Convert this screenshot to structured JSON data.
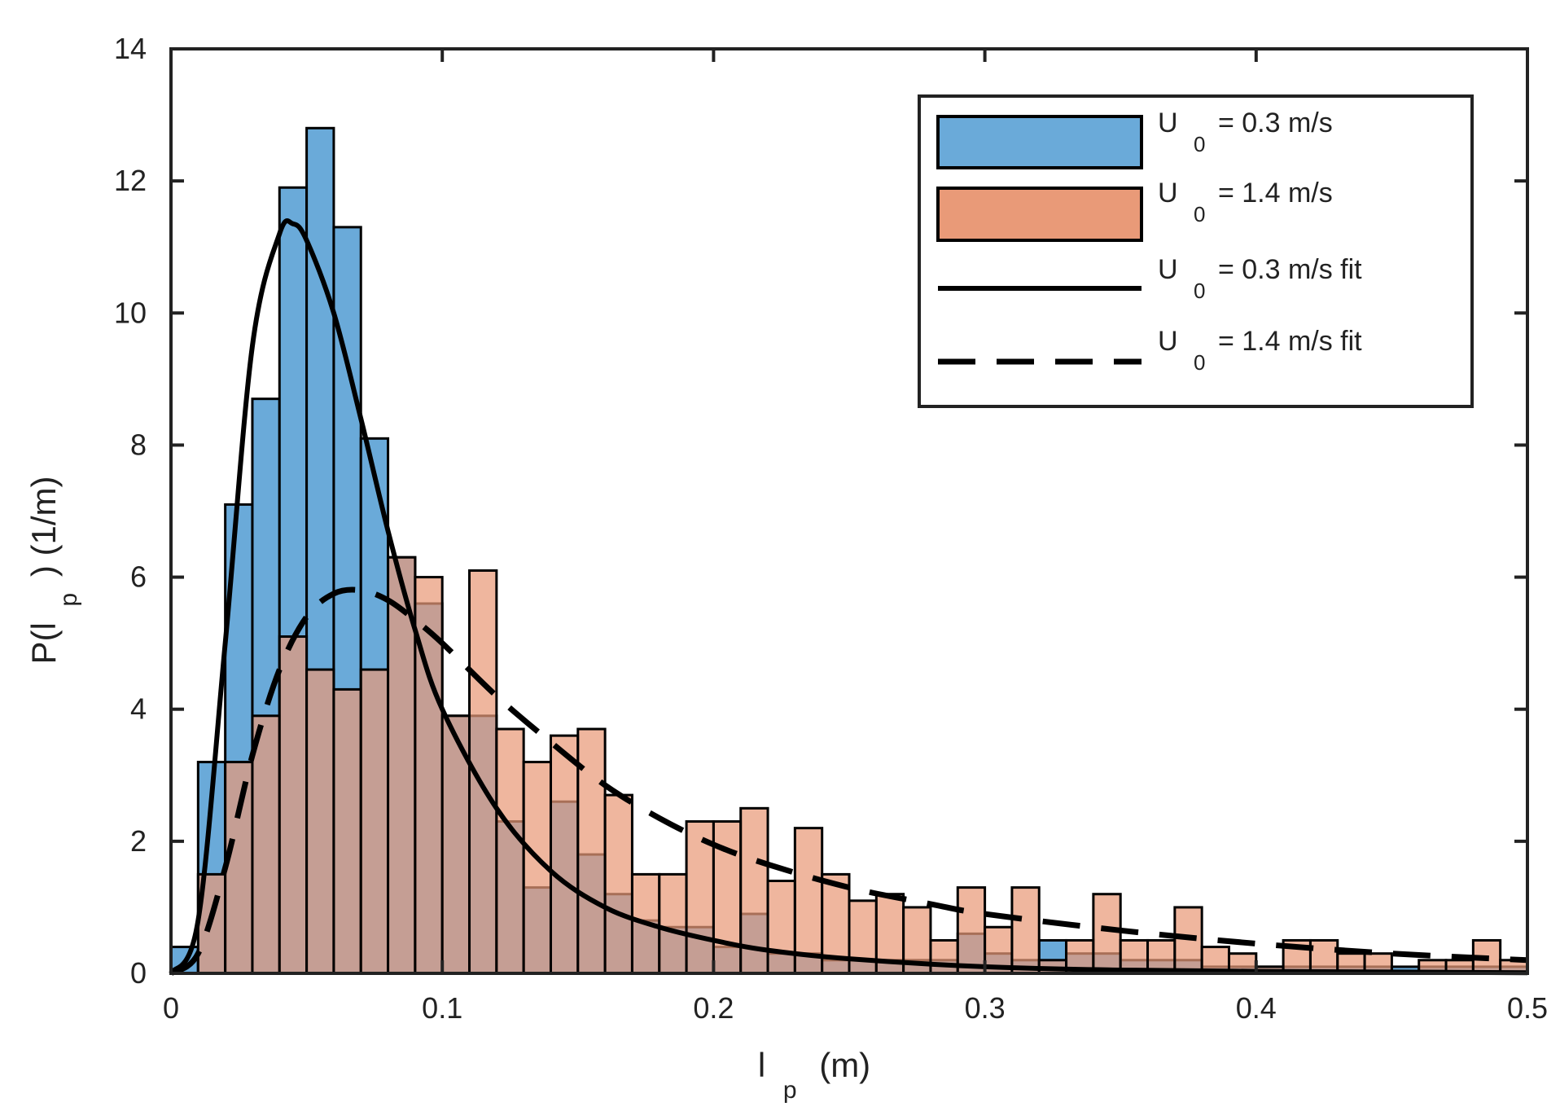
{
  "chart_data": {
    "type": "bar",
    "xlabel": {
      "main": "l",
      "sub": "p",
      "unit": "(m)"
    },
    "ylabel": {
      "prefix": "P(l",
      "sub": "p",
      "suffix": ") (1/m)"
    },
    "xlim": [
      0,
      0.5
    ],
    "ylim": [
      0,
      14
    ],
    "xticks": [
      0,
      0.1,
      0.2,
      0.3,
      0.4,
      0.5
    ],
    "xtick_labels": [
      "0",
      "0.1",
      "0.2",
      "0.3",
      "0.4",
      "0.5"
    ],
    "yticks": [
      0,
      2,
      4,
      6,
      8,
      10,
      12,
      14
    ],
    "ytick_labels": [
      "0",
      "2",
      "4",
      "6",
      "8",
      "10",
      "12",
      "14"
    ],
    "grid": false,
    "legend_position": "top-right",
    "bin_edges": [
      0,
      0.01,
      0.02,
      0.03,
      0.04,
      0.05,
      0.06,
      0.07,
      0.08,
      0.09,
      0.1,
      0.11,
      0.12,
      0.13,
      0.14,
      0.15,
      0.16,
      0.17,
      0.18,
      0.19,
      0.2,
      0.21,
      0.22,
      0.23,
      0.24,
      0.25,
      0.26,
      0.27,
      0.28,
      0.29,
      0.3,
      0.31,
      0.32,
      0.33,
      0.34,
      0.35,
      0.36,
      0.37,
      0.38,
      0.39,
      0.4,
      0.41,
      0.42,
      0.43,
      0.44,
      0.45,
      0.46,
      0.47,
      0.48,
      0.49,
      0.5
    ],
    "series": [
      {
        "name": "0.3 m/s",
        "legend": {
          "prefix": "U",
          "sub": "0",
          "suffix": "= 0.3 m/s"
        },
        "kind": "histogram",
        "color": "#6aaad9",
        "values": [
          0.4,
          3.2,
          7.1,
          8.7,
          11.9,
          12.8,
          11.3,
          8.1,
          6.3,
          5.6,
          3.9,
          3.9,
          2.3,
          1.3,
          2.6,
          1.8,
          1.2,
          0.8,
          0.7,
          0.7,
          0.4,
          0.9,
          0.3,
          0.3,
          0.2,
          0.2,
          0.2,
          0.2,
          0.2,
          0.6,
          0.3,
          0.2,
          0.5,
          0.3,
          0.3,
          0.2,
          0.2,
          0.2,
          0.1,
          0.1,
          0.1,
          0.1,
          0.1,
          0.1,
          0.1,
          0.1,
          0.1,
          0.1,
          0.1,
          0.1
        ]
      },
      {
        "name": "1.4 m/s",
        "legend": {
          "prefix": "U",
          "sub": "0",
          "suffix": "= 1.4 m/s"
        },
        "kind": "histogram",
        "color": "#e99a78",
        "values": [
          0.0,
          1.5,
          3.2,
          3.9,
          5.1,
          4.6,
          4.3,
          4.6,
          6.3,
          6.0,
          3.9,
          6.1,
          3.7,
          3.2,
          3.6,
          3.7,
          2.7,
          1.5,
          1.5,
          2.3,
          2.3,
          2.5,
          1.4,
          2.2,
          1.5,
          1.1,
          1.2,
          1.0,
          0.5,
          1.3,
          0.7,
          1.3,
          0.2,
          0.5,
          1.2,
          0.5,
          0.5,
          1.0,
          0.4,
          0.3,
          0.1,
          0.5,
          0.5,
          0.3,
          0.3,
          0.0,
          0.2,
          0.2,
          0.5,
          0.2
        ]
      },
      {
        "name": "0.3 m/s fit",
        "legend": {
          "prefix": "U",
          "sub": "0",
          "suffix": "= 0.3 m/s fit"
        },
        "kind": "line",
        "style": "solid",
        "color": "#000000",
        "x": [
          0,
          0.01,
          0.02,
          0.03,
          0.04,
          0.045,
          0.05,
          0.06,
          0.07,
          0.08,
          0.09,
          0.1,
          0.12,
          0.14,
          0.16,
          0.18,
          0.2,
          0.22,
          0.25,
          0.3,
          0.35,
          0.4,
          0.45,
          0.5
        ],
        "y": [
          0,
          0.8,
          5.0,
          9.5,
          11.2,
          11.35,
          11.1,
          10.0,
          8.4,
          6.7,
          5.2,
          4.0,
          2.5,
          1.55,
          1.0,
          0.7,
          0.5,
          0.35,
          0.22,
          0.1,
          0.05,
          0.03,
          0.02,
          0.01
        ]
      },
      {
        "name": "1.4 m/s fit",
        "legend": {
          "prefix": "U",
          "sub": "0",
          "suffix": "= 1.4 m/s fit"
        },
        "kind": "line",
        "style": "dashed",
        "color": "#000000",
        "x": [
          0,
          0.01,
          0.02,
          0.03,
          0.04,
          0.05,
          0.06,
          0.07,
          0.08,
          0.09,
          0.1,
          0.12,
          0.14,
          0.16,
          0.18,
          0.2,
          0.22,
          0.25,
          0.28,
          0.3,
          0.35,
          0.4,
          0.45,
          0.5
        ],
        "y": [
          0,
          0.3,
          1.6,
          3.3,
          4.6,
          5.4,
          5.75,
          5.8,
          5.65,
          5.35,
          5.0,
          4.2,
          3.5,
          2.85,
          2.35,
          1.95,
          1.65,
          1.3,
          1.05,
          0.9,
          0.65,
          0.45,
          0.3,
          0.2
        ]
      }
    ]
  }
}
